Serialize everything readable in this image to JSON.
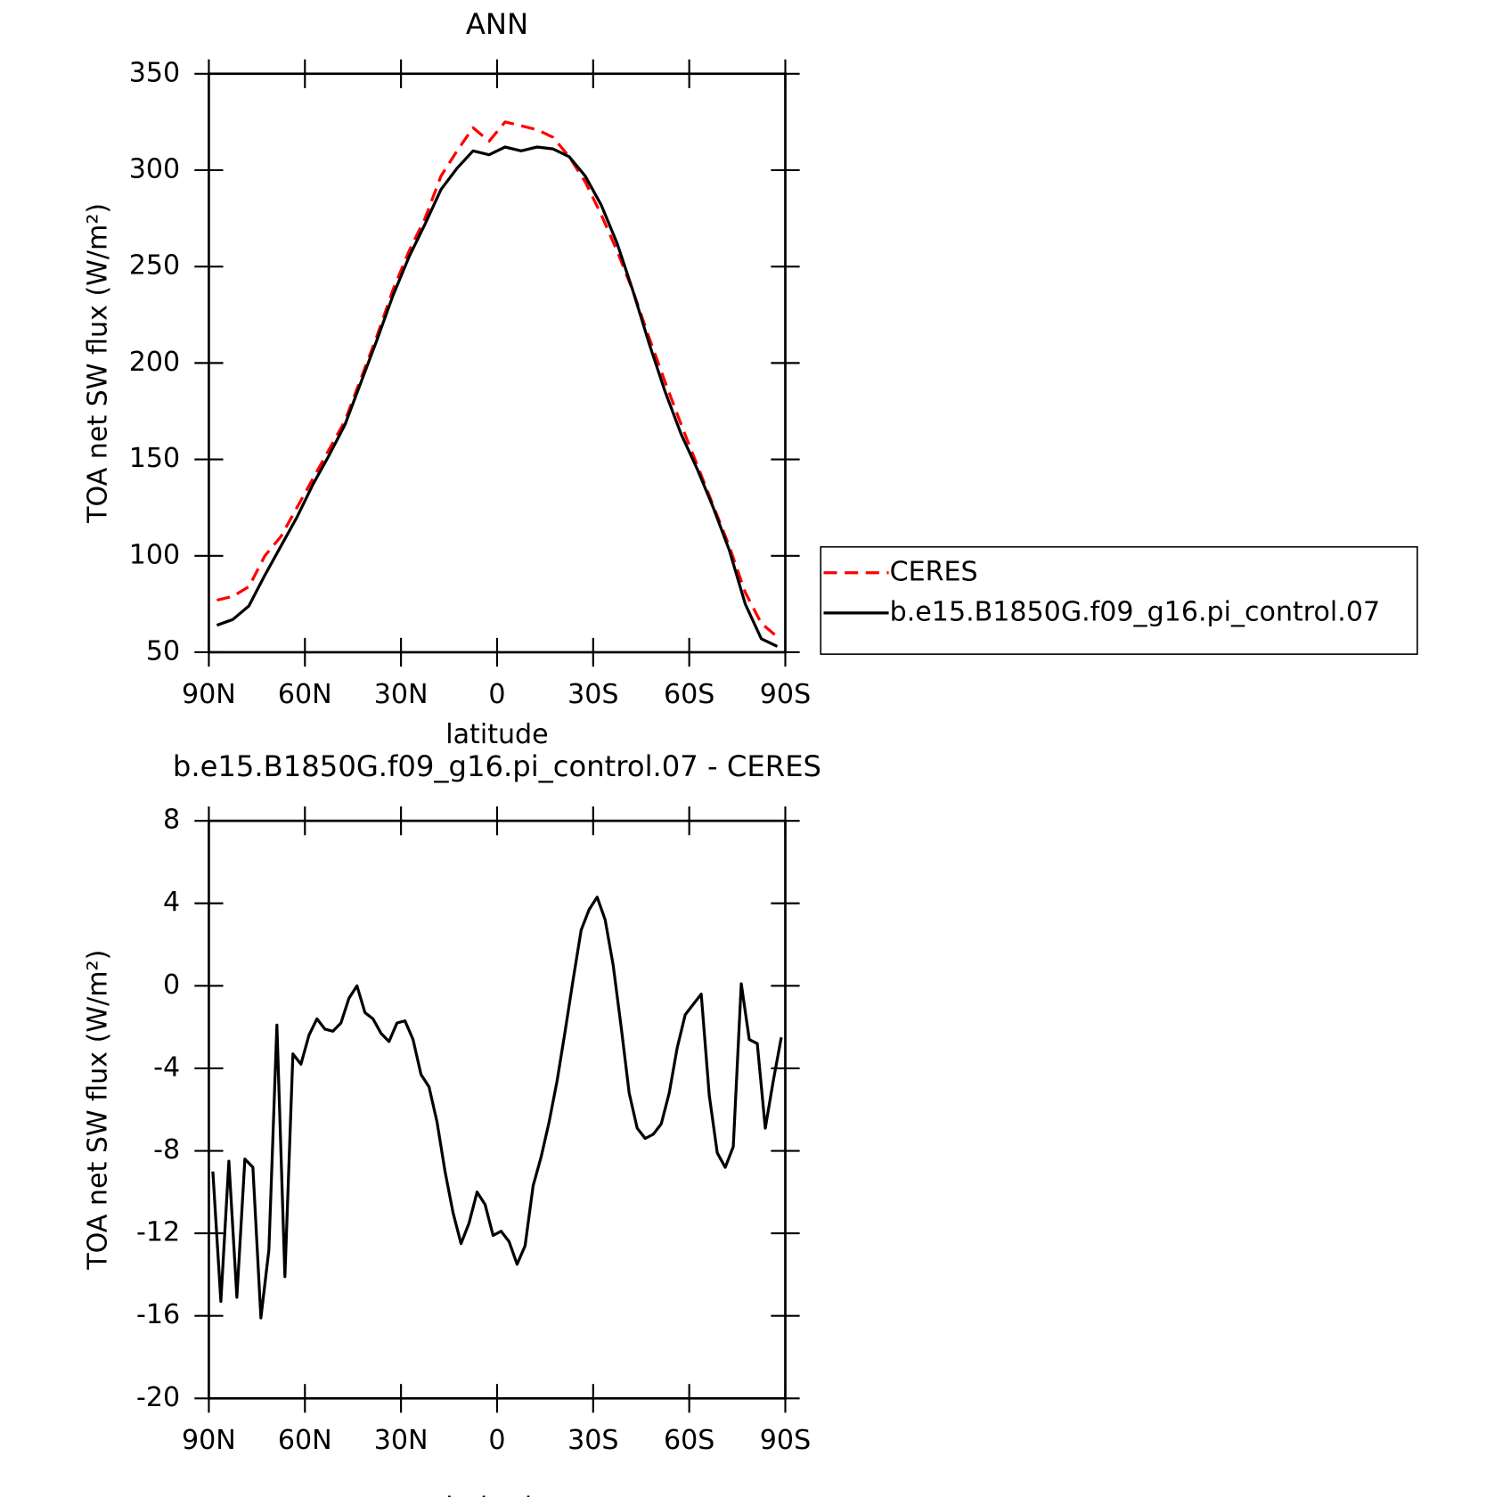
{
  "chart_data": [
    {
      "type": "line",
      "title": "ANN",
      "xlabel": "latitude",
      "ylabel": "TOA net SW flux (W/m²)",
      "x": [
        87.5,
        82.5,
        77.5,
        72.5,
        67.5,
        62.5,
        57.5,
        52.5,
        47.5,
        42.5,
        37.5,
        32.5,
        27.5,
        22.5,
        17.5,
        12.5,
        7.5,
        2.5,
        -2.5,
        -7.5,
        -12.5,
        -17.5,
        -22.5,
        -27.5,
        -32.5,
        -37.5,
        -42.5,
        -47.5,
        -52.5,
        -57.5,
        -62.5,
        -67.5,
        -72.5,
        -77.5,
        -82.5,
        -87.5
      ],
      "series": [
        {
          "name": "CERES",
          "color": "#ff0000",
          "dash": true,
          "values": [
            77,
            79,
            84,
            100,
            110,
            125,
            140,
            155,
            170,
            192,
            214,
            238,
            258,
            275,
            297,
            310,
            322,
            315,
            325,
            323,
            321,
            317,
            307,
            294,
            277,
            258,
            237,
            213,
            190,
            168,
            147,
            126,
            105,
            81,
            65,
            58
          ]
        },
        {
          "name": "b.e15.B1850G.f09_g16.pi_control.07",
          "color": "#000000",
          "dash": false,
          "values": [
            64,
            67,
            74,
            90,
            105,
            120,
            137,
            152,
            168,
            190,
            212,
            235,
            255,
            272,
            290,
            301,
            310,
            308,
            312,
            310,
            312,
            311,
            307,
            297,
            282,
            262,
            237,
            210,
            185,
            163,
            145,
            125,
            103,
            75,
            57,
            53
          ]
        }
      ],
      "xlim": [
        90,
        -90
      ],
      "xticks": [
        {
          "value": 90,
          "label": "90N"
        },
        {
          "value": 60,
          "label": "60N"
        },
        {
          "value": 30,
          "label": "30N"
        },
        0,
        {
          "value": -30,
          "label": "30S"
        },
        {
          "value": -60,
          "label": "60S"
        },
        {
          "value": -90,
          "label": "90S"
        }
      ],
      "ylim": [
        50,
        350
      ],
      "yticks": [
        50,
        100,
        150,
        200,
        250,
        300,
        350
      ],
      "legend": "right"
    },
    {
      "type": "line",
      "title": "b.e15.B1850G.f09_g16.pi_control.07 - CERES",
      "xlabel": "latitude",
      "ylabel": "TOA net SW flux (W/m²)",
      "x": [
        88.75,
        86.25,
        83.75,
        81.25,
        78.75,
        76.25,
        73.75,
        71.25,
        68.75,
        66.25,
        63.75,
        61.25,
        58.75,
        56.25,
        53.75,
        51.25,
        48.75,
        46.25,
        43.75,
        41.25,
        38.75,
        36.25,
        33.75,
        31.25,
        28.75,
        26.25,
        23.75,
        21.25,
        18.75,
        16.25,
        13.75,
        11.25,
        8.75,
        6.25,
        3.75,
        1.25,
        -1.25,
        -3.75,
        -6.25,
        -8.75,
        -11.25,
        -13.75,
        -16.25,
        -18.75,
        -21.25,
        -23.75,
        -26.25,
        -28.75,
        -31.25,
        -33.75,
        -36.25,
        -38.75,
        -41.25,
        -43.75,
        -46.25,
        -48.75,
        -51.25,
        -53.75,
        -56.25,
        -58.75,
        -61.25,
        -63.75,
        -66.25,
        -68.75,
        -71.25,
        -73.75,
        -76.25,
        -78.75,
        -81.25,
        -83.75,
        -86.25,
        -88.75
      ],
      "values": [
        -9.0,
        -15.3,
        -8.5,
        -15.1,
        -8.4,
        -8.8,
        -16.1,
        -12.8,
        -1.9,
        -14.1,
        -3.3,
        -3.8,
        -2.4,
        -1.6,
        -2.1,
        -2.2,
        -1.8,
        -0.6,
        0.0,
        -1.3,
        -1.6,
        -2.3,
        -2.7,
        -1.8,
        -1.7,
        -2.6,
        -4.3,
        -4.9,
        -6.6,
        -9.0,
        -11.0,
        -12.5,
        -11.5,
        -10.0,
        -10.6,
        -12.1,
        -11.9,
        -12.4,
        -13.5,
        -12.6,
        -9.7,
        -8.3,
        -6.6,
        -4.6,
        -2.2,
        0.3,
        2.7,
        3.7,
        4.3,
        3.2,
        1.0,
        -2.0,
        -5.2,
        -6.9,
        -7.4,
        -7.2,
        -6.7,
        -5.2,
        -3.0,
        -1.4,
        -0.9,
        -0.4,
        -5.3,
        -8.1,
        -8.8,
        -7.8,
        0.1,
        -2.6,
        -2.8,
        -6.9,
        -4.6,
        -2.5
      ],
      "color": "#000000",
      "xlim": [
        90,
        -90
      ],
      "xticks": [
        {
          "value": 90,
          "label": "90N"
        },
        {
          "value": 60,
          "label": "60N"
        },
        {
          "value": 30,
          "label": "30N"
        },
        0,
        {
          "value": -30,
          "label": "30S"
        },
        {
          "value": -60,
          "label": "60S"
        },
        {
          "value": -90,
          "label": "90S"
        }
      ],
      "ylim": [
        -20,
        8
      ],
      "yticks": [
        -20,
        -16,
        -12,
        -8,
        -4,
        0,
        4,
        8
      ]
    }
  ]
}
